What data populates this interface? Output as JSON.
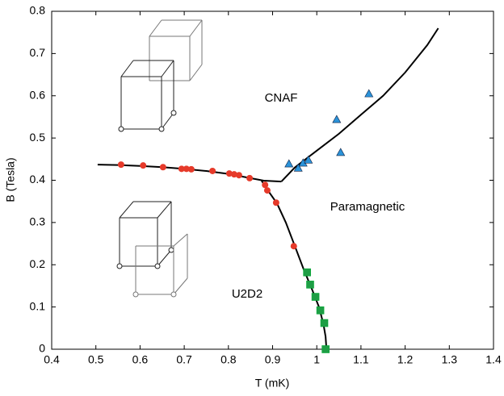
{
  "chart_data": {
    "type": "scatter",
    "xlabel": "T (mK)",
    "ylabel": "B (Tesla)",
    "xlim": [
      0.4,
      1.4
    ],
    "xticks": [
      0.4,
      0.5,
      0.6,
      0.7,
      0.8,
      0.9,
      1,
      1.1,
      1.2,
      1.3,
      1.4
    ],
    "ylim": [
      0,
      0.8
    ],
    "yticks": [
      0,
      0.1,
      0.2,
      0.3,
      0.4,
      0.5,
      0.6,
      0.7,
      0.8
    ],
    "annotations": [
      "CNAF",
      "Paramagnetic",
      "U2D2"
    ],
    "series": [
      {
        "marker": "circle",
        "color": "#e63a2a",
        "x": [
          0.557,
          0.607,
          0.652,
          0.694,
          0.705,
          0.716,
          0.764,
          0.802,
          0.813,
          0.824,
          0.848,
          0.883,
          0.888,
          0.908,
          0.948
        ],
        "values": [
          0.437,
          0.435,
          0.431,
          0.427,
          0.427,
          0.426,
          0.422,
          0.416,
          0.414,
          0.412,
          0.405,
          0.389,
          0.376,
          0.347,
          0.244
        ]
      },
      {
        "marker": "triangle",
        "color": "#2b93d9",
        "x": [
          0.937,
          0.958,
          0.969,
          0.981,
          1.045,
          1.054,
          1.118
        ],
        "values": [
          0.439,
          0.429,
          0.441,
          0.448,
          0.544,
          0.466,
          0.605
        ]
      },
      {
        "marker": "square",
        "color": "#1e9e45",
        "x": [
          0.978,
          0.985,
          0.997,
          1.008,
          1.017,
          1.02
        ],
        "values": [
          0.182,
          0.153,
          0.124,
          0.092,
          0.062,
          0
        ]
      }
    ],
    "lines": [
      {
        "color": "#000000",
        "x": [
          0.504,
          0.55,
          0.6,
          0.65,
          0.7,
          0.75,
          0.8,
          0.85,
          0.88,
          0.92
        ],
        "values": [
          0.437,
          0.436,
          0.434,
          0.431,
          0.427,
          0.422,
          0.415,
          0.405,
          0.399,
          0.397
        ]
      },
      {
        "color": "#000000",
        "x": [
          0.875,
          0.89,
          0.91,
          0.93,
          0.95,
          0.97,
          0.99,
          1.005,
          1.015,
          1.02,
          1.022
        ],
        "values": [
          0.399,
          0.375,
          0.345,
          0.3,
          0.245,
          0.19,
          0.14,
          0.1,
          0.06,
          0.03,
          0
        ]
      },
      {
        "color": "#000000",
        "x": [
          0.92,
          0.95,
          1.0,
          1.05,
          1.1,
          1.15,
          1.2,
          1.25,
          1.275
        ],
        "values": [
          0.397,
          0.43,
          0.47,
          0.51,
          0.555,
          0.6,
          0.655,
          0.72,
          0.76
        ]
      }
    ]
  }
}
